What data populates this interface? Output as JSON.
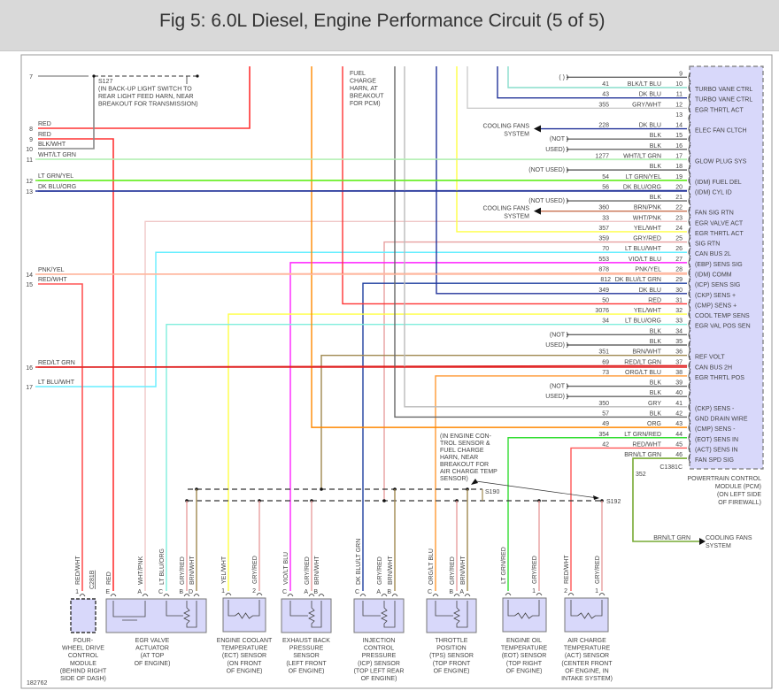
{
  "title": "Fig 5: 6.0L Diesel, Engine Performance Circuit (5 of 5)",
  "figure_id": "182762",
  "wire_colors": {
    "RED": "#ff3333",
    "BLK/WHT": "#888888",
    "WHT/LT GRN": "#b8f0b8",
    "LT GRN/YEL": "#66ee22",
    "DK BLU/ORG": "#223399",
    "PNK/YEL": "#ffb8a0",
    "RED/WHT": "#ff5555",
    "RED/LT GRN": "#e02020",
    "LT BLU/WHT": "#66eeff",
    "BLK": "#666666",
    "GRY": "#bbbbbb",
    "GRY/WHT": "#cccccc",
    "DK BLU": "#223399",
    "BLK/LT BLU": "#88ddcc",
    "BRN/PNK": "#c87050",
    "WHT/PNK": "#f0c8c8",
    "YEL/WHT": "#ffff44",
    "GRY/RED": "#e8a0a0",
    "VIO/LT BLU": "#ff22ff",
    "DK BLU/LT GRN": "#2040a0",
    "LT BLU/ORG": "#80eedd",
    "BRN/WHT": "#a08850",
    "ORG/LT BLU": "#ff9933",
    "ORG": "#ff8800",
    "LT GRN/RED": "#33dd33",
    "BRN/LT GRN": "#77aa33"
  },
  "left_connector": [
    {
      "pin": "7",
      "color": ""
    },
    {
      "pin": "8",
      "color": "RED"
    },
    {
      "pin": "9",
      "color": "RED"
    },
    {
      "pin": "10",
      "color": "BLK/WHT"
    },
    {
      "pin": "11",
      "color": "WHT/LT GRN"
    },
    {
      "pin": "12",
      "color": "LT GRN/YEL"
    },
    {
      "pin": "13",
      "color": "DK BLU/ORG"
    },
    {
      "pin": "14",
      "color": "PNK/YEL"
    },
    {
      "pin": "15",
      "color": "RED/WHT"
    },
    {
      "pin": "16",
      "color": "RED/LT GRN"
    },
    {
      "pin": "17",
      "color": "LT BLU/WHT"
    }
  ],
  "pcm": {
    "connector": "C1381C",
    "label": [
      "POWERTRAIN CONTROL",
      "MODULE (PCM)",
      "(ON LEFT SIDE",
      "OF FIREWALL)"
    ],
    "pins": [
      {
        "pin": "9",
        "circuit": "",
        "color": "",
        "function": "",
        "note": "( )"
      },
      {
        "pin": "10",
        "circuit": "41",
        "color": "BLK/LT BLU",
        "function": "TURBO VANE CTRL"
      },
      {
        "pin": "11",
        "circuit": "43",
        "color": "DK BLU",
        "function": "TURBO VANE CTRL"
      },
      {
        "pin": "12",
        "circuit": "355",
        "color": "GRY/WHT",
        "function": "EGR THRTL ACT"
      },
      {
        "pin": "13",
        "circuit": "",
        "color": "",
        "function": ""
      },
      {
        "pin": "14",
        "circuit": "228",
        "color": "DK BLU",
        "function": "ELEC FAN CLTCH"
      },
      {
        "pin": "15",
        "circuit": "",
        "color": "BLK",
        "function": "",
        "note": "(NOT"
      },
      {
        "pin": "16",
        "circuit": "",
        "color": "BLK",
        "function": "",
        "note": "USED)"
      },
      {
        "pin": "17",
        "circuit": "1277",
        "color": "WHT/LT GRN",
        "function": "GLOW PLUG SYS"
      },
      {
        "pin": "18",
        "circuit": "",
        "color": "BLK",
        "function": "",
        "note": "(NOT USED)"
      },
      {
        "pin": "19",
        "circuit": "54",
        "color": "LT GRN/YEL",
        "function": "(IDM) FUEL DEL"
      },
      {
        "pin": "20",
        "circuit": "56",
        "color": "DK BLU/ORG",
        "function": "(IDM) CYL ID"
      },
      {
        "pin": "21",
        "circuit": "",
        "color": "BLK",
        "function": "",
        "note": "(NOT USED)"
      },
      {
        "pin": "22",
        "circuit": "360",
        "color": "BRN/PNK",
        "function": "FAN SIG RTN"
      },
      {
        "pin": "23",
        "circuit": "33",
        "color": "WHT/PNK",
        "function": "EGR VALVE ACT"
      },
      {
        "pin": "24",
        "circuit": "357",
        "color": "YEL/WHT",
        "function": "EGR THRTL ACT"
      },
      {
        "pin": "25",
        "circuit": "359",
        "color": "GRY/RED",
        "function": "SIG RTN"
      },
      {
        "pin": "26",
        "circuit": "70",
        "color": "LT BLU/WHT",
        "function": "CAN BUS 2L"
      },
      {
        "pin": "27",
        "circuit": "553",
        "color": "VIO/LT BLU",
        "function": "(EBP) SENS SIG"
      },
      {
        "pin": "28",
        "circuit": "878",
        "color": "PNK/YEL",
        "function": "(IDM) COMM"
      },
      {
        "pin": "29",
        "circuit": "812",
        "color": "DK BLU/LT GRN",
        "function": "(ICP) SENS SIG"
      },
      {
        "pin": "30",
        "circuit": "349",
        "color": "DK BLU",
        "function": "(CKP) SENS +"
      },
      {
        "pin": "31",
        "circuit": "50",
        "color": "RED",
        "function": "(CMP) SENS +"
      },
      {
        "pin": "32",
        "circuit": "3076",
        "color": "YEL/WHT",
        "function": "COOL TEMP SENS"
      },
      {
        "pin": "33",
        "circuit": "34",
        "color": "LT BLU/ORG",
        "function": "EGR VAL POS SEN"
      },
      {
        "pin": "34",
        "circuit": "",
        "color": "BLK",
        "function": "",
        "note": "(NOT"
      },
      {
        "pin": "35",
        "circuit": "",
        "color": "BLK",
        "function": "",
        "note": "USED)"
      },
      {
        "pin": "36",
        "circuit": "351",
        "color": "BRN/WHT",
        "function": "REF VOLT"
      },
      {
        "pin": "37",
        "circuit": "69",
        "color": "RED/LT GRN",
        "function": "CAN BUS 2H"
      },
      {
        "pin": "38",
        "circuit": "73",
        "color": "ORG/LT BLU",
        "function": "EGR THRTL POS"
      },
      {
        "pin": "39",
        "circuit": "",
        "color": "BLK",
        "function": "",
        "note": "(NOT"
      },
      {
        "pin": "40",
        "circuit": "",
        "color": "BLK",
        "function": "",
        "note": "USED)"
      },
      {
        "pin": "41",
        "circuit": "350",
        "color": "GRY",
        "function": "(CKP) SENS -"
      },
      {
        "pin": "42",
        "circuit": "57",
        "color": "BLK",
        "function": "GND DRAIN WIRE"
      },
      {
        "pin": "43",
        "circuit": "49",
        "color": "ORG",
        "function": "(CMP) SENS -"
      },
      {
        "pin": "44",
        "circuit": "354",
        "color": "LT GRN/RED",
        "function": "(EOT) SENS IN"
      },
      {
        "pin": "45",
        "circuit": "42",
        "color": "RED/WHT",
        "function": "(ACT) SENS IN"
      },
      {
        "pin": "46",
        "circuit": "",
        "color": "BRN/LT GRN",
        "function": "FAN SPD SIG"
      }
    ]
  },
  "cooling_fans": {
    "label": [
      "COOLING FANS",
      "SYSTEM"
    ],
    "fan_output": {
      "circuit": "352",
      "color": "BRN/LT GRN"
    }
  },
  "notes": {
    "s127": [
      "S127",
      "(IN BACK-UP LIGHT SWITCH TO",
      "REAR LIGHT FEED HARN, NEAR",
      "BREAKOUT FOR TRANSMISSION)"
    ],
    "fuel_charge": [
      "FUEL",
      "CHARGE",
      "HARN, AT",
      "BREAKOUT",
      "FOR PCM)"
    ],
    "s190_note": [
      "(IN ENGINE CON-",
      "TROL SENSOR &",
      "FUEL CHARGE",
      "HARN, NEAR",
      "BREAKOUT FOR",
      "AIR CHARGE TEMP",
      "SENSOR)"
    ],
    "s190": "S190",
    "s192": "S192",
    "c281b": "C281B"
  },
  "components": [
    {
      "id": "4wd",
      "label": [
        "FOUR-",
        "WHEEL DRIVE",
        "CONTROL",
        "MODULE",
        "(BEHIND RIGHT",
        "SIDE OF DASH)"
      ],
      "pins": [
        {
          "pin": "1",
          "color": "RED/WHT"
        }
      ]
    },
    {
      "id": "egr",
      "label": [
        "EGR VALVE",
        "ACTUATOR",
        "(AT TOP",
        "OF ENGINE)"
      ],
      "pins": [
        {
          "pin": "E",
          "color": "RED"
        },
        {
          "pin": "A",
          "color": "WHT/PNK"
        },
        {
          "pin": "C",
          "color": "LT BLU/ORG"
        },
        {
          "pin": "B",
          "color": "GRY/RED"
        },
        {
          "pin": "D",
          "color": "BRN/WHT"
        }
      ]
    },
    {
      "id": "ect",
      "label": [
        "ENGINE COOLANT",
        "TEMPERATURE",
        "(ECT) SENSOR",
        "(ON FRONT",
        "OF ENGINE)"
      ],
      "pins": [
        {
          "pin": "1",
          "color": "YEL/WHT"
        },
        {
          "pin": "2",
          "color": "GRY/RED"
        }
      ]
    },
    {
      "id": "ebp",
      "label": [
        "EXHAUST BACK",
        "PRESSURE",
        "SENSOR",
        "(LEFT FRONT",
        "OF ENGINE)"
      ],
      "pins": [
        {
          "pin": "C",
          "color": "VIO/LT BLU"
        },
        {
          "pin": "A",
          "color": "GRY/RED"
        },
        {
          "pin": "B",
          "color": "BRN/WHT"
        }
      ]
    },
    {
      "id": "icp",
      "label": [
        "INJECTION",
        "CONTROL",
        "PRESSURE",
        "(ICP) SENSOR",
        "(TOP LEFT REAR",
        "OF ENGINE)"
      ],
      "pins": [
        {
          "pin": "C",
          "color": "DK BLU/LT GRN"
        },
        {
          "pin": "A",
          "color": "GRY/RED"
        },
        {
          "pin": "B",
          "color": "BRN/WHT"
        }
      ]
    },
    {
      "id": "tps",
      "label": [
        "THROTTLE",
        "POSITION",
        "(TPS) SENSOR",
        "(TOP FRONT",
        "OF ENGINE)"
      ],
      "pins": [
        {
          "pin": "C",
          "color": "ORG/LT BLU"
        },
        {
          "pin": "B",
          "color": "GRY/RED"
        },
        {
          "pin": "A",
          "color": "BRN/WHT"
        }
      ]
    },
    {
      "id": "eot",
      "label": [
        "ENGINE OIL",
        "TEMPERATURE",
        "(EOT) SENSOR",
        "(TOP RIGHT",
        "OF ENGINE)"
      ],
      "pins": [
        {
          "pin": "",
          "color": "LT GRN/RED"
        },
        {
          "pin": "1",
          "color": "GRY/RED"
        }
      ]
    },
    {
      "id": "act",
      "label": [
        "AIR CHARGE",
        "TEMPERATURE",
        "(ACT) SENSOR",
        "(CENTER FRONT",
        "OF ENGINE, IN",
        "INTAKE SYSTEM)"
      ],
      "pins": [
        {
          "pin": "2",
          "color": "RED/WHT"
        },
        {
          "pin": "1",
          "color": "GRY/RED"
        }
      ]
    }
  ]
}
